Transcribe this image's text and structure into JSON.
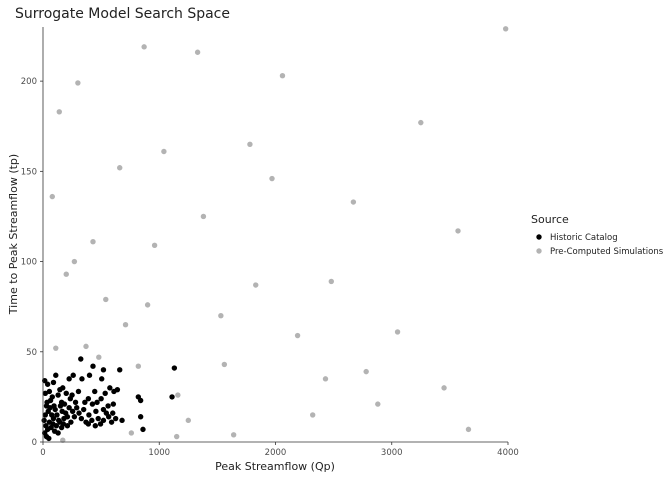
{
  "chart_data": {
    "type": "scatter",
    "title": "Surrogate Model Search Space",
    "xlabel": "Peak Streamflow (Qp)",
    "ylabel": "Time to Peak Streamflow (tp)",
    "xlim": [
      0,
      4000
    ],
    "ylim": [
      0,
      230
    ],
    "x_ticks": [
      0,
      1000,
      2000,
      3000,
      4000
    ],
    "y_ticks": [
      0,
      50,
      100,
      150,
      200
    ],
    "x_tick_labels": [
      "0",
      "1000",
      "2000",
      "3000",
      "4000"
    ],
    "y_tick_labels": [
      "0",
      "50",
      "100",
      "150",
      "200"
    ],
    "grid": false,
    "legend": {
      "title": "Source",
      "placement": "right"
    },
    "series": [
      {
        "name": "Pre-Computed Simulations",
        "color": "#b3b3b3",
        "points": [
          [
            3980,
            229
          ],
          [
            870,
            219
          ],
          [
            1330,
            216
          ],
          [
            300,
            199
          ],
          [
            2060,
            203
          ],
          [
            140,
            183
          ],
          [
            3250,
            177
          ],
          [
            1040,
            161
          ],
          [
            1780,
            165
          ],
          [
            660,
            152
          ],
          [
            1970,
            146
          ],
          [
            80,
            136
          ],
          [
            2670,
            133
          ],
          [
            1380,
            125
          ],
          [
            3570,
            117
          ],
          [
            430,
            111
          ],
          [
            960,
            109
          ],
          [
            270,
            100
          ],
          [
            200,
            93
          ],
          [
            2480,
            89
          ],
          [
            1830,
            87
          ],
          [
            540,
            79
          ],
          [
            900,
            76
          ],
          [
            1530,
            70
          ],
          [
            710,
            65
          ],
          [
            3050,
            61
          ],
          [
            2190,
            59
          ],
          [
            110,
            52
          ],
          [
            370,
            53
          ],
          [
            480,
            47
          ],
          [
            820,
            42
          ],
          [
            1560,
            43
          ],
          [
            2780,
            39
          ],
          [
            2430,
            35
          ],
          [
            3450,
            30
          ],
          [
            1160,
            26
          ],
          [
            2880,
            21
          ],
          [
            2320,
            15
          ],
          [
            1250,
            12
          ],
          [
            3660,
            7
          ],
          [
            1640,
            4
          ],
          [
            760,
            5
          ],
          [
            1150,
            3
          ],
          [
            170,
            1
          ]
        ]
      },
      {
        "name": "Historic Catalog",
        "color": "#000000",
        "points": [
          [
            15,
            34
          ],
          [
            40,
            32
          ],
          [
            90,
            33
          ],
          [
            110,
            37
          ],
          [
            170,
            30
          ],
          [
            225,
            35
          ],
          [
            260,
            37
          ],
          [
            325,
            46
          ],
          [
            400,
            37
          ],
          [
            430,
            42
          ],
          [
            505,
            35
          ],
          [
            520,
            40
          ],
          [
            610,
            28
          ],
          [
            660,
            40
          ],
          [
            575,
            30
          ],
          [
            820,
            25
          ],
          [
            840,
            23
          ],
          [
            1130,
            41
          ],
          [
            1110,
            25
          ],
          [
            20,
            27
          ],
          [
            55,
            28
          ],
          [
            80,
            25
          ],
          [
            95,
            20
          ],
          [
            130,
            26
          ],
          [
            145,
            29
          ],
          [
            160,
            22
          ],
          [
            185,
            21
          ],
          [
            200,
            27
          ],
          [
            235,
            24
          ],
          [
            250,
            26
          ],
          [
            280,
            22
          ],
          [
            305,
            28
          ],
          [
            335,
            35
          ],
          [
            360,
            22
          ],
          [
            390,
            24
          ],
          [
            425,
            21
          ],
          [
            445,
            28
          ],
          [
            465,
            22
          ],
          [
            500,
            24
          ],
          [
            535,
            27
          ],
          [
            560,
            20
          ],
          [
            605,
            21
          ],
          [
            640,
            29
          ],
          [
            680,
            12
          ],
          [
            545,
            16
          ],
          [
            30,
            20
          ],
          [
            45,
            17
          ],
          [
            60,
            19
          ],
          [
            75,
            15
          ],
          [
            90,
            13
          ],
          [
            105,
            18
          ],
          [
            120,
            15
          ],
          [
            135,
            12
          ],
          [
            150,
            20
          ],
          [
            165,
            17
          ],
          [
            180,
            13
          ],
          [
            195,
            16
          ],
          [
            210,
            14
          ],
          [
            225,
            19
          ],
          [
            240,
            11
          ],
          [
            255,
            17
          ],
          [
            270,
            14
          ],
          [
            290,
            19
          ],
          [
            310,
            16
          ],
          [
            330,
            13
          ],
          [
            350,
            18
          ],
          [
            370,
            11
          ],
          [
            395,
            15
          ],
          [
            420,
            12
          ],
          [
            455,
            17
          ],
          [
            475,
            13
          ],
          [
            495,
            10
          ],
          [
            520,
            18
          ],
          [
            565,
            14
          ],
          [
            590,
            11
          ],
          [
            625,
            13
          ],
          [
            10,
            12
          ],
          [
            25,
            9
          ],
          [
            40,
            7
          ],
          [
            55,
            11
          ],
          [
            70,
            8
          ],
          [
            85,
            10
          ],
          [
            100,
            6
          ],
          [
            115,
            9
          ],
          [
            130,
            5
          ],
          [
            145,
            11
          ],
          [
            160,
            8
          ],
          [
            175,
            10
          ],
          [
            210,
            9
          ],
          [
            390,
            10
          ],
          [
            450,
            9
          ],
          [
            520,
            12
          ],
          [
            600,
            16
          ],
          [
            840,
            14
          ],
          [
            860,
            7
          ],
          [
            15,
            5
          ],
          [
            30,
            3
          ],
          [
            50,
            2
          ],
          [
            20,
            15
          ],
          [
            35,
            22
          ],
          [
            65,
            23
          ]
        ]
      }
    ]
  }
}
